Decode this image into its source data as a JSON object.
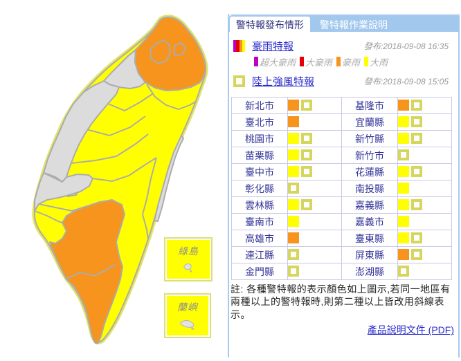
{
  "tabs": [
    {
      "label": "警特報發布情形",
      "active": true
    },
    {
      "label": "警特報作業說明",
      "active": false
    }
  ],
  "legend": {
    "rain": {
      "label": "豪雨特報",
      "issued": "發布:2018-09-08 16:35",
      "levels": [
        {
          "label": "超大豪雨",
          "color": "#bf00bf"
        },
        {
          "label": "大豪雨",
          "color": "#e60000"
        },
        {
          "label": "豪雨",
          "color": "#f7941e"
        },
        {
          "label": "大雨",
          "color": "#ffff00"
        }
      ]
    },
    "wind": {
      "label": "陸上強風特報",
      "issued": "發布:2018-09-08 15:05"
    }
  },
  "colors": {
    "orange": "#f7941e",
    "yellow": "#ffff00",
    "wind_khaki": "#d6d65e",
    "map_gray": "#dcdcdc",
    "map_border": "#acacac",
    "coast_halo": "#e2e26b",
    "panel_blue": "#a3c8ee"
  },
  "map": {
    "islands": [
      {
        "label": "綠島"
      },
      {
        "label": "蘭嶼"
      }
    ]
  },
  "table": {
    "rows": [
      {
        "left": {
          "name": "新北市",
          "rain": "orange",
          "wind": true
        },
        "right": {
          "name": "基隆市",
          "rain": "orange",
          "wind": true
        }
      },
      {
        "left": {
          "name": "臺北市",
          "rain": "orange",
          "wind": false
        },
        "right": {
          "name": "宜蘭縣",
          "rain": "yellow",
          "wind": true
        }
      },
      {
        "left": {
          "name": "桃園市",
          "rain": "yellow",
          "wind": true
        },
        "right": {
          "name": "新竹縣",
          "rain": "yellow",
          "wind": true
        }
      },
      {
        "left": {
          "name": "苗栗縣",
          "rain": "yellow",
          "wind": true
        },
        "right": {
          "name": "新竹市",
          "rain": null,
          "wind": true
        }
      },
      {
        "left": {
          "name": "臺中市",
          "rain": "yellow",
          "wind": true
        },
        "right": {
          "name": "花蓮縣",
          "rain": "yellow",
          "wind": true
        }
      },
      {
        "left": {
          "name": "彰化縣",
          "rain": null,
          "wind": true
        },
        "right": {
          "name": "南投縣",
          "rain": "yellow",
          "wind": false
        }
      },
      {
        "left": {
          "name": "雲林縣",
          "rain": "yellow",
          "wind": true
        },
        "right": {
          "name": "嘉義縣",
          "rain": "yellow",
          "wind": true
        }
      },
      {
        "left": {
          "name": "臺南市",
          "rain": "yellow",
          "wind": false
        },
        "right": {
          "name": "嘉義市",
          "rain": "yellow",
          "wind": false
        }
      },
      {
        "left": {
          "name": "高雄市",
          "rain": "orange",
          "wind": false
        },
        "right": {
          "name": "臺東縣",
          "rain": "yellow",
          "wind": true
        }
      },
      {
        "left": {
          "name": "連江縣",
          "rain": null,
          "wind": true
        },
        "right": {
          "name": "屏東縣",
          "rain": "orange",
          "wind": true
        }
      },
      {
        "left": {
          "name": "金門縣",
          "rain": null,
          "wind": true
        },
        "right": {
          "name": "澎湖縣",
          "rain": null,
          "wind": true
        }
      }
    ]
  },
  "note": "註: 各種警特報的表示顏色如上圖示,若同一地區有兩種以上的警特報時,則第二種以上皆改用斜線表示。",
  "pdf_link": "產品說明文件 (PDF)"
}
